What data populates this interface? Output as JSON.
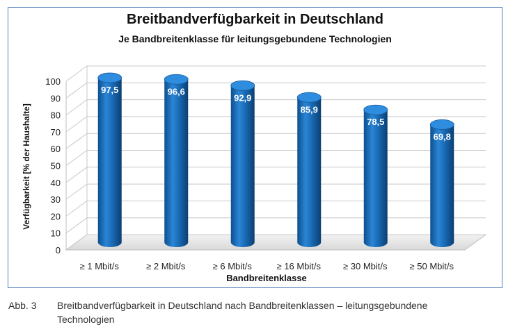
{
  "chart_data": {
    "type": "bar",
    "title": "Breitbandverfügbarkeit in Deutschland",
    "subtitle": "Je Bandbreitenklasse für leitungsgebundene Technologien",
    "xlabel": "Bandbreitenklasse",
    "ylabel": "Verfügbarkeit [% der Haushalte]",
    "categories": [
      "≥ 1 Mbit/s",
      "≥ 2 Mbit/s",
      "≥ 6 Mbit/s",
      "≥ 16 Mbit/s",
      "≥ 30 Mbit/s",
      "≥ 50 Mbit/s"
    ],
    "values": [
      97.5,
      96.6,
      92.9,
      85.9,
      78.5,
      69.8
    ],
    "value_labels": [
      "97,5",
      "96,6",
      "92,9",
      "85,9",
      "78,5",
      "69,8"
    ],
    "ylim": [
      0,
      100
    ],
    "yticks": [
      0,
      10,
      20,
      30,
      40,
      50,
      60,
      70,
      80,
      90,
      100
    ],
    "grid": true,
    "bar_color": "#1a6bb5"
  },
  "caption": {
    "number": "Abb. 3",
    "text": "Breitbandverfügbarkeit in Deutschland nach Bandbreitenklassen – leitungsgebundene Technologien"
  }
}
